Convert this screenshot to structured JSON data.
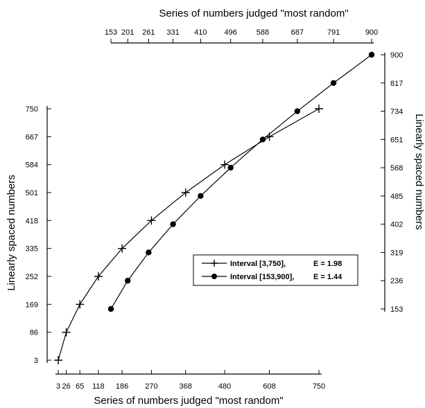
{
  "chart_data": {
    "type": "line",
    "x_bottom": {
      "label": "Series of numbers judged \"most random\"",
      "ticks": [
        "3",
        "26",
        "65",
        "118",
        "186",
        "270",
        "368",
        "480",
        "608",
        "750"
      ]
    },
    "x_top": {
      "label": "Series of numbers judged \"most random\"",
      "ticks": [
        "153",
        "201",
        "261",
        "331",
        "410",
        "496",
        "588",
        "687",
        "791",
        "900"
      ]
    },
    "y_left": {
      "label": "Linearly spaced numbers",
      "ticks": [
        "3",
        "86",
        "169",
        "252",
        "335",
        "418",
        "501",
        "584",
        "667",
        "750"
      ]
    },
    "y_right": {
      "label": "Linearly spaced numbers",
      "ticks": [
        "153",
        "236",
        "319",
        "402",
        "485",
        "568",
        "651",
        "734",
        "817",
        "900"
      ]
    },
    "series": [
      {
        "name": "Interval [3,750],",
        "e_label": "E = 1.98",
        "marker": "plus",
        "x": [
          3,
          26,
          65,
          118,
          186,
          270,
          368,
          480,
          608,
          750
        ],
        "y": [
          3,
          86,
          169,
          252,
          335,
          418,
          501,
          584,
          667,
          750
        ]
      },
      {
        "name": "Interval [153,900],",
        "e_label": "E = 1.44",
        "marker": "circle",
        "x": [
          153,
          201,
          261,
          331,
          410,
          496,
          588,
          687,
          791,
          900
        ],
        "y": [
          153,
          236,
          319,
          402,
          485,
          568,
          651,
          734,
          817,
          900
        ]
      }
    ],
    "legend_position": "center-right",
    "grid": false
  }
}
